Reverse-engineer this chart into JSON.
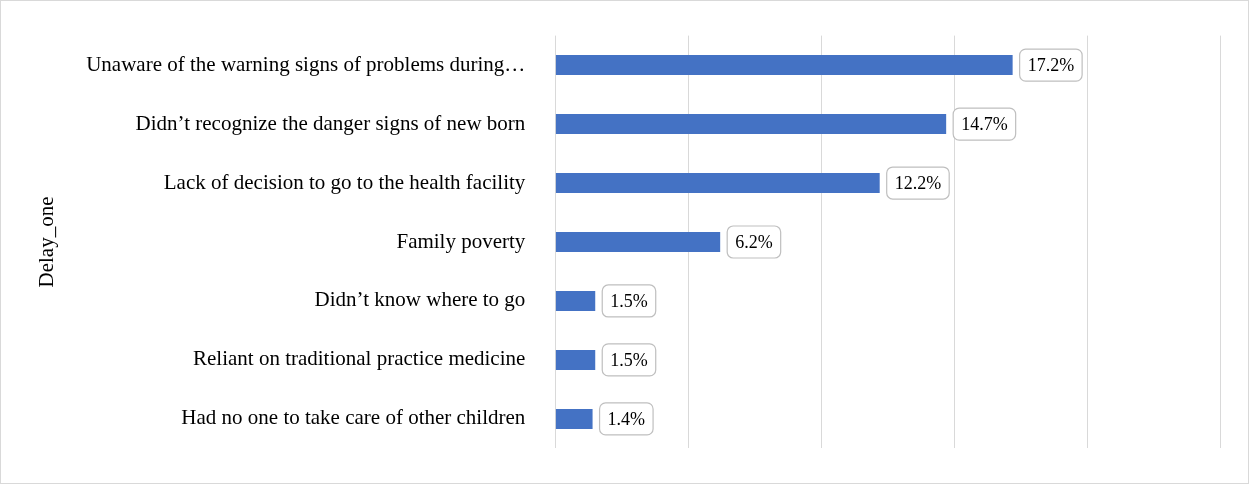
{
  "chart_data": {
    "type": "bar",
    "orientation": "horizontal",
    "ylabel": "Delay_one",
    "categories": [
      "Unaware of the warning signs of problems during…",
      "Didn’t recognize the danger signs of new born",
      "Lack of decision to go to the health facility",
      "Family poverty",
      "Didn’t know where to go",
      "Reliant on traditional practice medicine",
      "Had no one to take care of other children"
    ],
    "values": [
      17.2,
      14.7,
      12.2,
      6.2,
      1.5,
      1.5,
      1.4
    ],
    "value_labels": [
      "17.2%",
      "14.7%",
      "12.2%",
      "6.2%",
      "1.5%",
      "1.5%",
      "1.4%"
    ],
    "color": "#4472c4",
    "xlim": [
      0,
      25
    ],
    "xticks": [
      {
        "value": 0,
        "label": null
      },
      {
        "value": 5,
        "label": null
      },
      {
        "value": 10,
        "label": null
      },
      {
        "value": 15,
        "label": null
      },
      {
        "value": 20,
        "label": null
      },
      {
        "value": 25,
        "label": null
      }
    ],
    "grid": "x",
    "legend": false,
    "tick_labels": "y"
  }
}
